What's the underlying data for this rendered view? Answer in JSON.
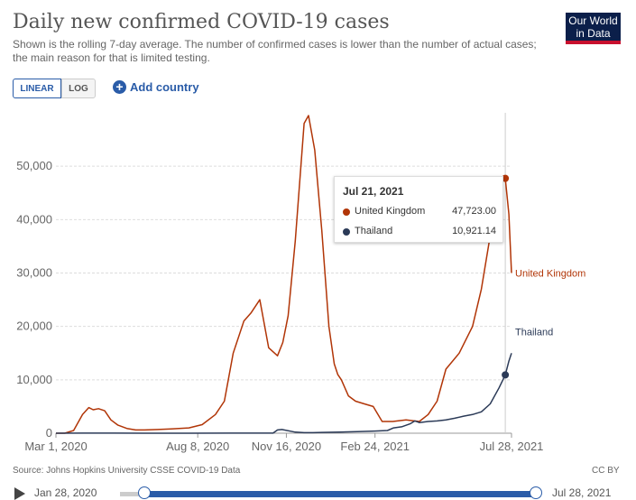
{
  "header": {
    "title": "Daily new confirmed COVID-19 cases",
    "subtitle": "Shown is the rolling 7-day average. The number of confirmed cases is lower than the number of actual cases; the main reason for that is limited testing.",
    "logo_line1": "Our World",
    "logo_line2": "in Data"
  },
  "controls": {
    "linear_label": "LINEAR",
    "log_label": "LOG",
    "add_country_label": "Add country"
  },
  "colors": {
    "uk": "#b13507",
    "thailand": "#2b3a57",
    "accent": "#2a5ca8"
  },
  "tooltip": {
    "date": "Jul 21, 2021",
    "rows": [
      {
        "name": "United Kingdom",
        "value": "47,723.00"
      },
      {
        "name": "Thailand",
        "value": "10,921.14"
      }
    ]
  },
  "footer": {
    "source": "Source: Johns Hopkins University CSSE COVID-19 Data",
    "license": "CC BY"
  },
  "timeline": {
    "start": "Jan 28, 2020",
    "end": "Jul 28, 2021"
  },
  "chart_data": {
    "type": "line",
    "title": "Daily new confirmed COVID-19 cases",
    "x_unit": "days since Mar 1, 2020",
    "xlim": [
      0,
      514
    ],
    "ylim": [
      0,
      60000
    ],
    "y_ticks": [
      0,
      10000,
      20000,
      30000,
      40000,
      50000
    ],
    "y_tick_labels": [
      "0",
      "10,000",
      "20,000",
      "30,000",
      "40,000",
      "50,000"
    ],
    "x_ticks": [
      0,
      160,
      260,
      360,
      514
    ],
    "x_tick_labels": [
      "Mar 1, 2020",
      "Aug 8, 2020",
      "Nov 16, 2020",
      "Feb 24, 2021",
      "Jul 28, 2021"
    ],
    "grid": "horizontal dashed",
    "hover_x": 507,
    "series": [
      {
        "name": "United Kingdom",
        "color": "#b13507",
        "end_label": "United Kingdom",
        "x": [
          0,
          10,
          20,
          30,
          37,
          42,
          48,
          55,
          62,
          70,
          80,
          90,
          100,
          115,
          130,
          150,
          165,
          180,
          190,
          200,
          212,
          220,
          230,
          240,
          250,
          256,
          262,
          270,
          280,
          285,
          292,
          300,
          308,
          314,
          318,
          322,
          330,
          338,
          348,
          358,
          368,
          380,
          395,
          410,
          420,
          430,
          440,
          455,
          470,
          480,
          490,
          497,
          502,
          507,
          511,
          514
        ],
        "y": [
          0,
          0,
          500,
          3500,
          4800,
          4400,
          4600,
          4200,
          2500,
          1500,
          900,
          600,
          600,
          700,
          800,
          1000,
          1600,
          3500,
          6000,
          15000,
          21000,
          22500,
          25000,
          16000,
          14500,
          17000,
          22000,
          36000,
          58000,
          59500,
          53000,
          38000,
          20000,
          13000,
          11000,
          10000,
          7000,
          6000,
          5500,
          5000,
          2200,
          2200,
          2500,
          2200,
          3500,
          6000,
          12000,
          15000,
          20000,
          27000,
          37000,
          43000,
          47000,
          47723,
          41000,
          30000
        ]
      },
      {
        "name": "Thailand",
        "color": "#2b3a57",
        "end_label": "Thailand",
        "x": [
          0,
          30,
          60,
          100,
          150,
          200,
          245,
          250,
          255,
          270,
          280,
          290,
          300,
          320,
          340,
          360,
          374,
          381,
          390,
          400,
          405,
          410,
          420,
          430,
          440,
          450,
          460,
          470,
          480,
          490,
          500,
          507,
          511,
          514
        ],
        "y": [
          0,
          20,
          10,
          5,
          5,
          10,
          10,
          600,
          700,
          200,
          100,
          100,
          150,
          200,
          300,
          400,
          500,
          1000,
          1200,
          1800,
          2300,
          2000,
          2200,
          2300,
          2500,
          2800,
          3200,
          3500,
          4000,
          5500,
          8500,
          10921,
          13500,
          15000
        ]
      }
    ]
  }
}
